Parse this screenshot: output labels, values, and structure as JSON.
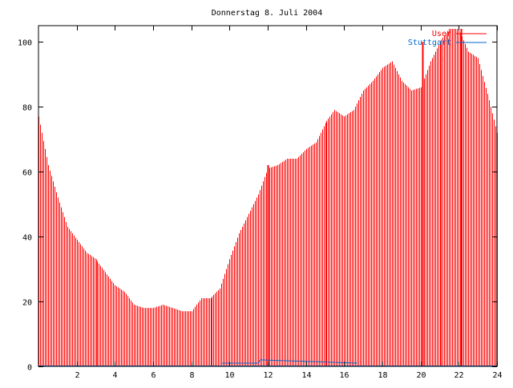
{
  "chart_data": {
    "type": "bar",
    "title": "Donnerstag 8. Juli 2004",
    "xlabel": "",
    "ylabel": "",
    "xlim": [
      0,
      24
    ],
    "ylim": [
      0,
      105
    ],
    "x_ticks": [
      2,
      4,
      6,
      8,
      10,
      12,
      14,
      16,
      18,
      20,
      22,
      24
    ],
    "y_ticks": [
      0,
      20,
      40,
      60,
      80,
      100
    ],
    "grid": false,
    "legend_position": "top-right",
    "series": [
      {
        "name": "User",
        "color": "#ff0000",
        "x": [
          0,
          0.5,
          1,
          1.5,
          2,
          2.5,
          3,
          3.5,
          4,
          4.5,
          5,
          5.5,
          6,
          6.5,
          7,
          7.5,
          8,
          8.5,
          9,
          9.5,
          10,
          10.5,
          11,
          11.5,
          12,
          12.5,
          13,
          13.5,
          14,
          14.5,
          15,
          15.5,
          16,
          16.5,
          17,
          17.5,
          18,
          18.5,
          19,
          19.5,
          20,
          20.5,
          21,
          21.5,
          22,
          22.5,
          23,
          23.5,
          24
        ],
        "values": [
          77,
          62,
          52,
          43,
          39,
          35,
          33,
          29,
          25,
          23,
          19,
          18,
          18,
          19,
          18,
          17,
          17,
          21,
          21,
          24,
          33,
          41,
          47,
          53,
          61,
          62,
          64,
          64,
          67,
          69,
          75,
          79,
          77,
          79,
          85,
          88,
          92,
          94,
          88,
          85,
          86,
          94,
          100,
          104,
          104,
          97,
          95,
          84,
          72
        ],
        "spikes": [
          {
            "x": 12,
            "value": 62
          },
          {
            "x": 20.1,
            "value": 100
          },
          {
            "x": 22.1,
            "value": 104
          }
        ]
      },
      {
        "name": "Stuttgart",
        "color": "#0066cc",
        "x": [
          9.6,
          11.5,
          11.6,
          16.7
        ],
        "values": [
          1,
          1,
          2,
          1
        ]
      }
    ]
  }
}
